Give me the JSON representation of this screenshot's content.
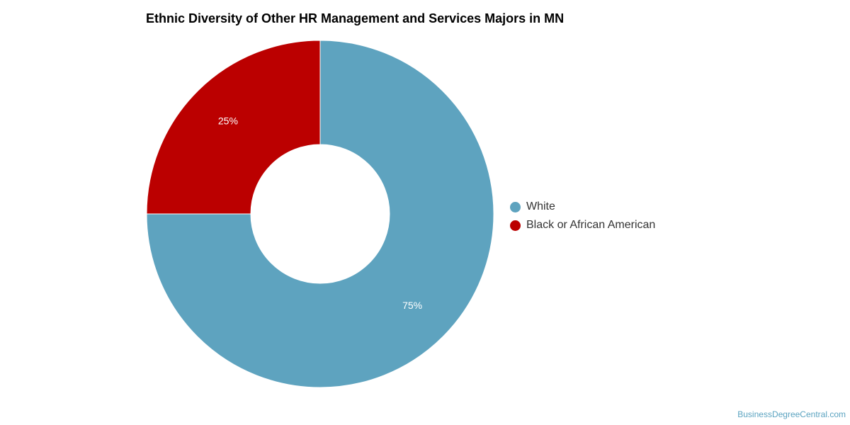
{
  "chart_data": {
    "type": "pie",
    "title": "Ethnic Diversity of Other HR Management and Services Majors in MN",
    "categories": [
      "White",
      "Black or African American"
    ],
    "values": [
      75,
      25
    ],
    "labels": [
      "75%",
      "25%"
    ],
    "colors": [
      "#5ea3bf",
      "#bb0000"
    ],
    "donut": true,
    "legend_position": "right"
  },
  "legend": {
    "items": [
      {
        "label": "White",
        "color": "#5ea3bf"
      },
      {
        "label": "Black or African American",
        "color": "#bb0000"
      }
    ]
  },
  "watermark": "BusinessDegreeCentral.com"
}
